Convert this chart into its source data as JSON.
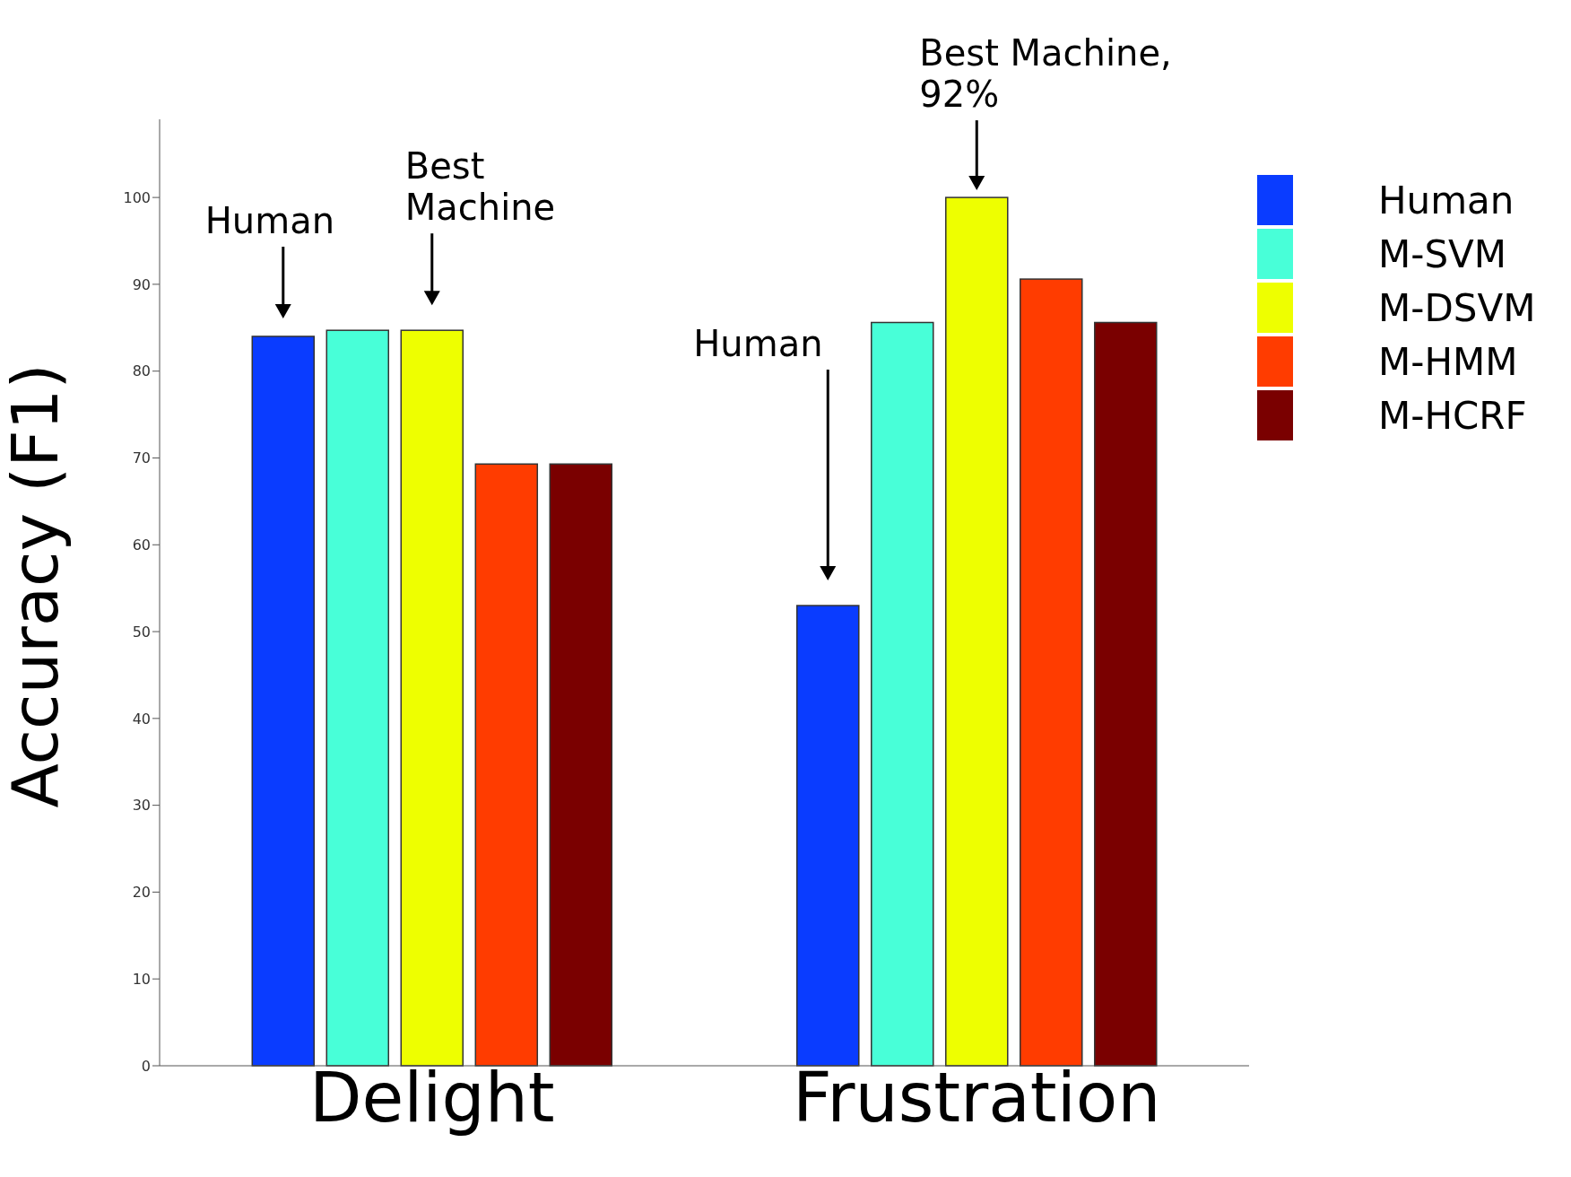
{
  "chart_data": {
    "type": "bar",
    "ylabel": "Accuracy (F1)",
    "categories": [
      "Delight",
      "Frustration"
    ],
    "series": [
      {
        "name": "Human",
        "color": "#0a3cff",
        "values": [
          84,
          53
        ]
      },
      {
        "name": "M-SVM",
        "color": "#48ffd8",
        "values": [
          84.7,
          85.6
        ]
      },
      {
        "name": "M-DSVM",
        "color": "#eeff00",
        "values": [
          84.7,
          100
        ]
      },
      {
        "name": "M-HMM",
        "color": "#ff3c00",
        "values": [
          69.3,
          90.6
        ]
      },
      {
        "name": "M-HCRF",
        "color": "#7a0000",
        "values": [
          69.3,
          85.6
        ]
      }
    ],
    "ylim": [
      0,
      109
    ],
    "yticks": [
      0,
      10,
      20,
      30,
      40,
      50,
      60,
      70,
      80,
      90,
      100
    ],
    "grid": false,
    "legend": "top right",
    "annotations": [
      "Human",
      "Best Machine",
      "Human",
      "Best Machine, 92%"
    ]
  }
}
